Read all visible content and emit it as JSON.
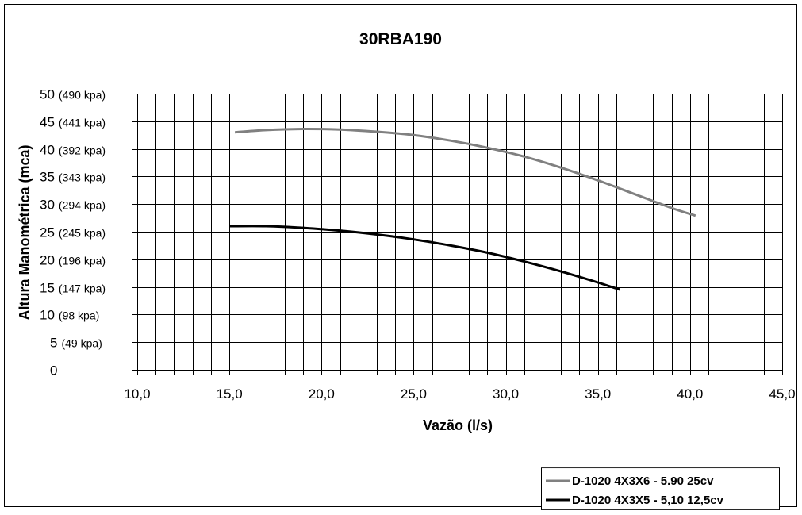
{
  "chart_data": {
    "type": "line",
    "title": "30RBA190",
    "xlabel": "Vazão (l/s)",
    "ylabel": "Altura Manométrica (mca)",
    "xlim": [
      10,
      45
    ],
    "ylim": [
      0,
      50
    ],
    "x_ticks": [
      "10,0",
      "15,0",
      "20,0",
      "25,0",
      "30,0",
      "35,0",
      "40,0",
      "45,0"
    ],
    "y_ticks": [
      {
        "value": "0",
        "kpa": ""
      },
      {
        "value": "5",
        "kpa": "(49 kpa)"
      },
      {
        "value": "10",
        "kpa": "(98 kpa)"
      },
      {
        "value": "15",
        "kpa": "(147 kpa)"
      },
      {
        "value": "20",
        "kpa": "(196 kpa)"
      },
      {
        "value": "25",
        "kpa": "(245 kpa)"
      },
      {
        "value": "30",
        "kpa": "(294 kpa)"
      },
      {
        "value": "35",
        "kpa": "(343 kpa)"
      },
      {
        "value": "40",
        "kpa": "(392 kpa)"
      },
      {
        "value": "45",
        "kpa": "(441 kpa)"
      },
      {
        "value": "50",
        "kpa": "(490 kpa)"
      }
    ],
    "grid": true,
    "legend_position": "bottom-right",
    "series": [
      {
        "name": "D-1020 4X3X6 - 5.90   25cv",
        "color": "#808080",
        "x": [
          15.3,
          17.0,
          19.0,
          21.0,
          23.0,
          25.0,
          27.0,
          29.0,
          31.0,
          33.0,
          35.0,
          37.0,
          39.0,
          40.3
        ],
        "y": [
          43.0,
          43.4,
          43.6,
          43.5,
          43.1,
          42.5,
          41.5,
          40.2,
          38.6,
          36.6,
          34.3,
          31.8,
          29.3,
          27.9
        ]
      },
      {
        "name": "D-1020 4X3X5 - 5,10  12,5cv",
        "color": "#000000",
        "x": [
          15.0,
          17.0,
          19.0,
          21.0,
          23.0,
          25.0,
          27.0,
          29.0,
          31.0,
          33.0,
          35.0,
          36.2
        ],
        "y": [
          26.0,
          26.0,
          25.7,
          25.2,
          24.5,
          23.6,
          22.5,
          21.2,
          19.6,
          17.8,
          15.8,
          14.5
        ]
      }
    ]
  }
}
